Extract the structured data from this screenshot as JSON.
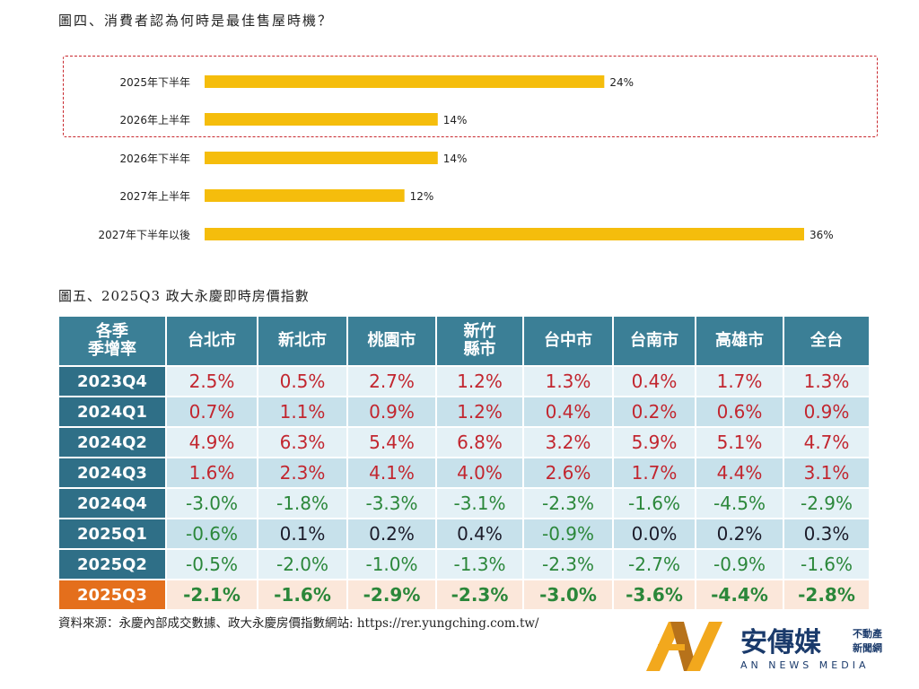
{
  "chart_data": {
    "type": "bar",
    "orientation": "horizontal",
    "title": "圖四、消費者認為何時是最佳售屋時機？",
    "categories": [
      "2025年下半年",
      "2026年上半年",
      "2026年下半年",
      "2027年上半年",
      "2027年下半年以後"
    ],
    "values": [
      24,
      14,
      14,
      12,
      36
    ],
    "data_labels": [
      "24%",
      "14%",
      "14%",
      "12%",
      "36%"
    ],
    "highlighted": [
      "2025年下半年",
      "2026年上半年"
    ],
    "bar_color": "#f5bd0c",
    "highlight_border_color": "#c8282e",
    "xlim": [
      0,
      36
    ],
    "grid": false
  },
  "table": {
    "title": "圖五、2025Q3 政大永慶即時房價指數",
    "corner": "各季\n季增率",
    "columns": [
      "台北市",
      "新北市",
      "桃園市",
      "新竹\n縣市",
      "台中市",
      "台南市",
      "高雄市",
      "全台"
    ],
    "rows": [
      {
        "label": "2023Q4",
        "values": [
          "2.5%",
          "0.5%",
          "2.7%",
          "1.2%",
          "1.3%",
          "0.4%",
          "1.7%",
          "1.3%"
        ]
      },
      {
        "label": "2024Q1",
        "values": [
          "0.7%",
          "1.1%",
          "0.9%",
          "1.2%",
          "0.4%",
          "0.2%",
          "0.6%",
          "0.9%"
        ]
      },
      {
        "label": "2024Q2",
        "values": [
          "4.9%",
          "6.3%",
          "5.4%",
          "6.8%",
          "3.2%",
          "5.9%",
          "5.1%",
          "4.7%"
        ]
      },
      {
        "label": "2024Q3",
        "values": [
          "1.6%",
          "2.3%",
          "4.1%",
          "4.0%",
          "2.6%",
          "1.7%",
          "4.4%",
          "3.1%"
        ]
      },
      {
        "label": "2024Q4",
        "values": [
          "-3.0%",
          "-1.8%",
          "-3.3%",
          "-3.1%",
          "-2.3%",
          "-1.6%",
          "-4.5%",
          "-2.9%"
        ]
      },
      {
        "label": "2025Q1",
        "values": [
          "-0.6%",
          "0.1%",
          "0.2%",
          "0.4%",
          "-0.9%",
          "0.0%",
          "0.2%",
          "0.3%"
        ]
      },
      {
        "label": "2025Q2",
        "values": [
          "-0.5%",
          "-2.0%",
          "-1.0%",
          "-1.3%",
          "-2.3%",
          "-2.7%",
          "-0.9%",
          "-1.6%"
        ]
      },
      {
        "label": "2025Q3",
        "values": [
          "-2.1%",
          "-1.6%",
          "-2.9%",
          "-2.3%",
          "-3.0%",
          "-3.6%",
          "-4.4%",
          "-2.8%"
        ]
      }
    ]
  },
  "source": {
    "text": "資料來源：永慶內部成交數據、政大永慶房價指數網站: ",
    "url": "https://rer.yungching.com.tw/"
  },
  "logo": {
    "name": "安傳媒",
    "tag1": "不動產",
    "tag2": "新聞網",
    "en": "AN NEWS MEDIA"
  }
}
